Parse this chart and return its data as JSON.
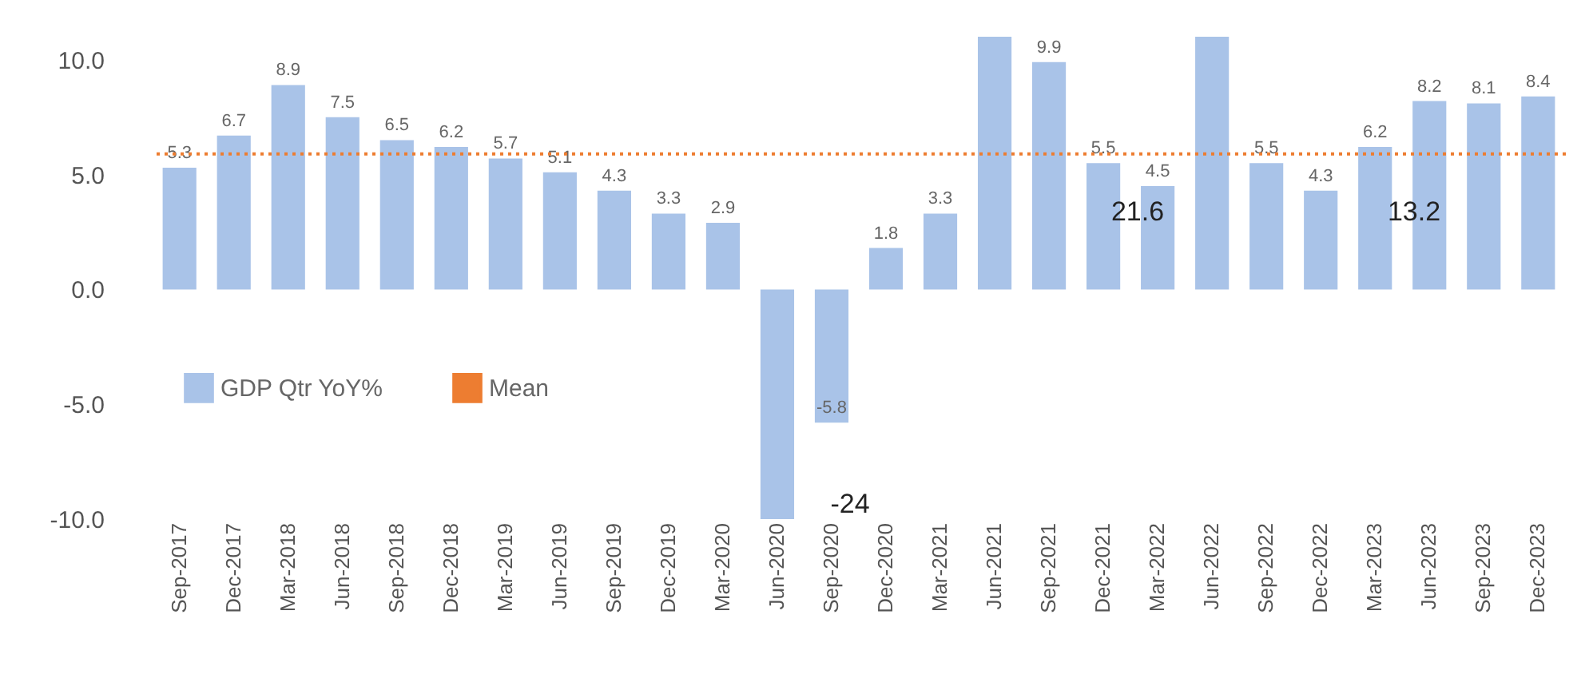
{
  "chart_data": {
    "type": "bar",
    "categories": [
      "Sep-2017",
      "Dec-2017",
      "Mar-2018",
      "Jun-2018",
      "Sep-2018",
      "Dec-2018",
      "Mar-2019",
      "Jun-2019",
      "Sep-2019",
      "Dec-2019",
      "Mar-2020",
      "Jun-2020",
      "Sep-2020",
      "Dec-2020",
      "Mar-2021",
      "Jun-2021",
      "Sep-2021",
      "Dec-2021",
      "Mar-2022",
      "Jun-2022",
      "Sep-2022",
      "Dec-2022",
      "Mar-2023",
      "Jun-2023",
      "Sep-2023",
      "Dec-2023"
    ],
    "series": [
      {
        "name": "GDP Qtr YoY%",
        "color": "#a9c3e8",
        "values": [
          5.3,
          6.7,
          8.9,
          7.5,
          6.5,
          6.2,
          5.7,
          5.1,
          4.3,
          3.3,
          2.9,
          -10,
          -5.8,
          1.8,
          3.3,
          11,
          9.9,
          5.5,
          4.5,
          11,
          5.5,
          4.3,
          6.2,
          8.2,
          8.1,
          8.4
        ],
        "value_labels": [
          "5.3",
          "6.7",
          "8.9",
          "7.5",
          "6.5",
          "6.2",
          "5.7",
          "5.1",
          "4.3",
          "3.3",
          "2.9",
          null,
          "-5.8",
          "1.8",
          "3.3",
          null,
          "9.9",
          "5.5",
          "4.5",
          null,
          "5.5",
          "4.3",
          "6.2",
          "8.2",
          "8.1",
          "8.4"
        ]
      }
    ],
    "ylim": [
      -10,
      11
    ],
    "yticks": [
      {
        "value": -10,
        "label": "-10.0"
      },
      {
        "value": -5,
        "label": "-5.0"
      },
      {
        "value": 0,
        "label": "0.0"
      },
      {
        "value": 5,
        "label": "5.0"
      },
      {
        "value": 10,
        "label": "10.0"
      }
    ],
    "ref_lines": [
      {
        "axis": "y",
        "value": 5.9,
        "label": "Mean",
        "color": "#ed7d31",
        "line_style": "dotted"
      }
    ],
    "annotations": [
      "-24",
      "21.6",
      "13.2"
    ],
    "legend": "left"
  }
}
